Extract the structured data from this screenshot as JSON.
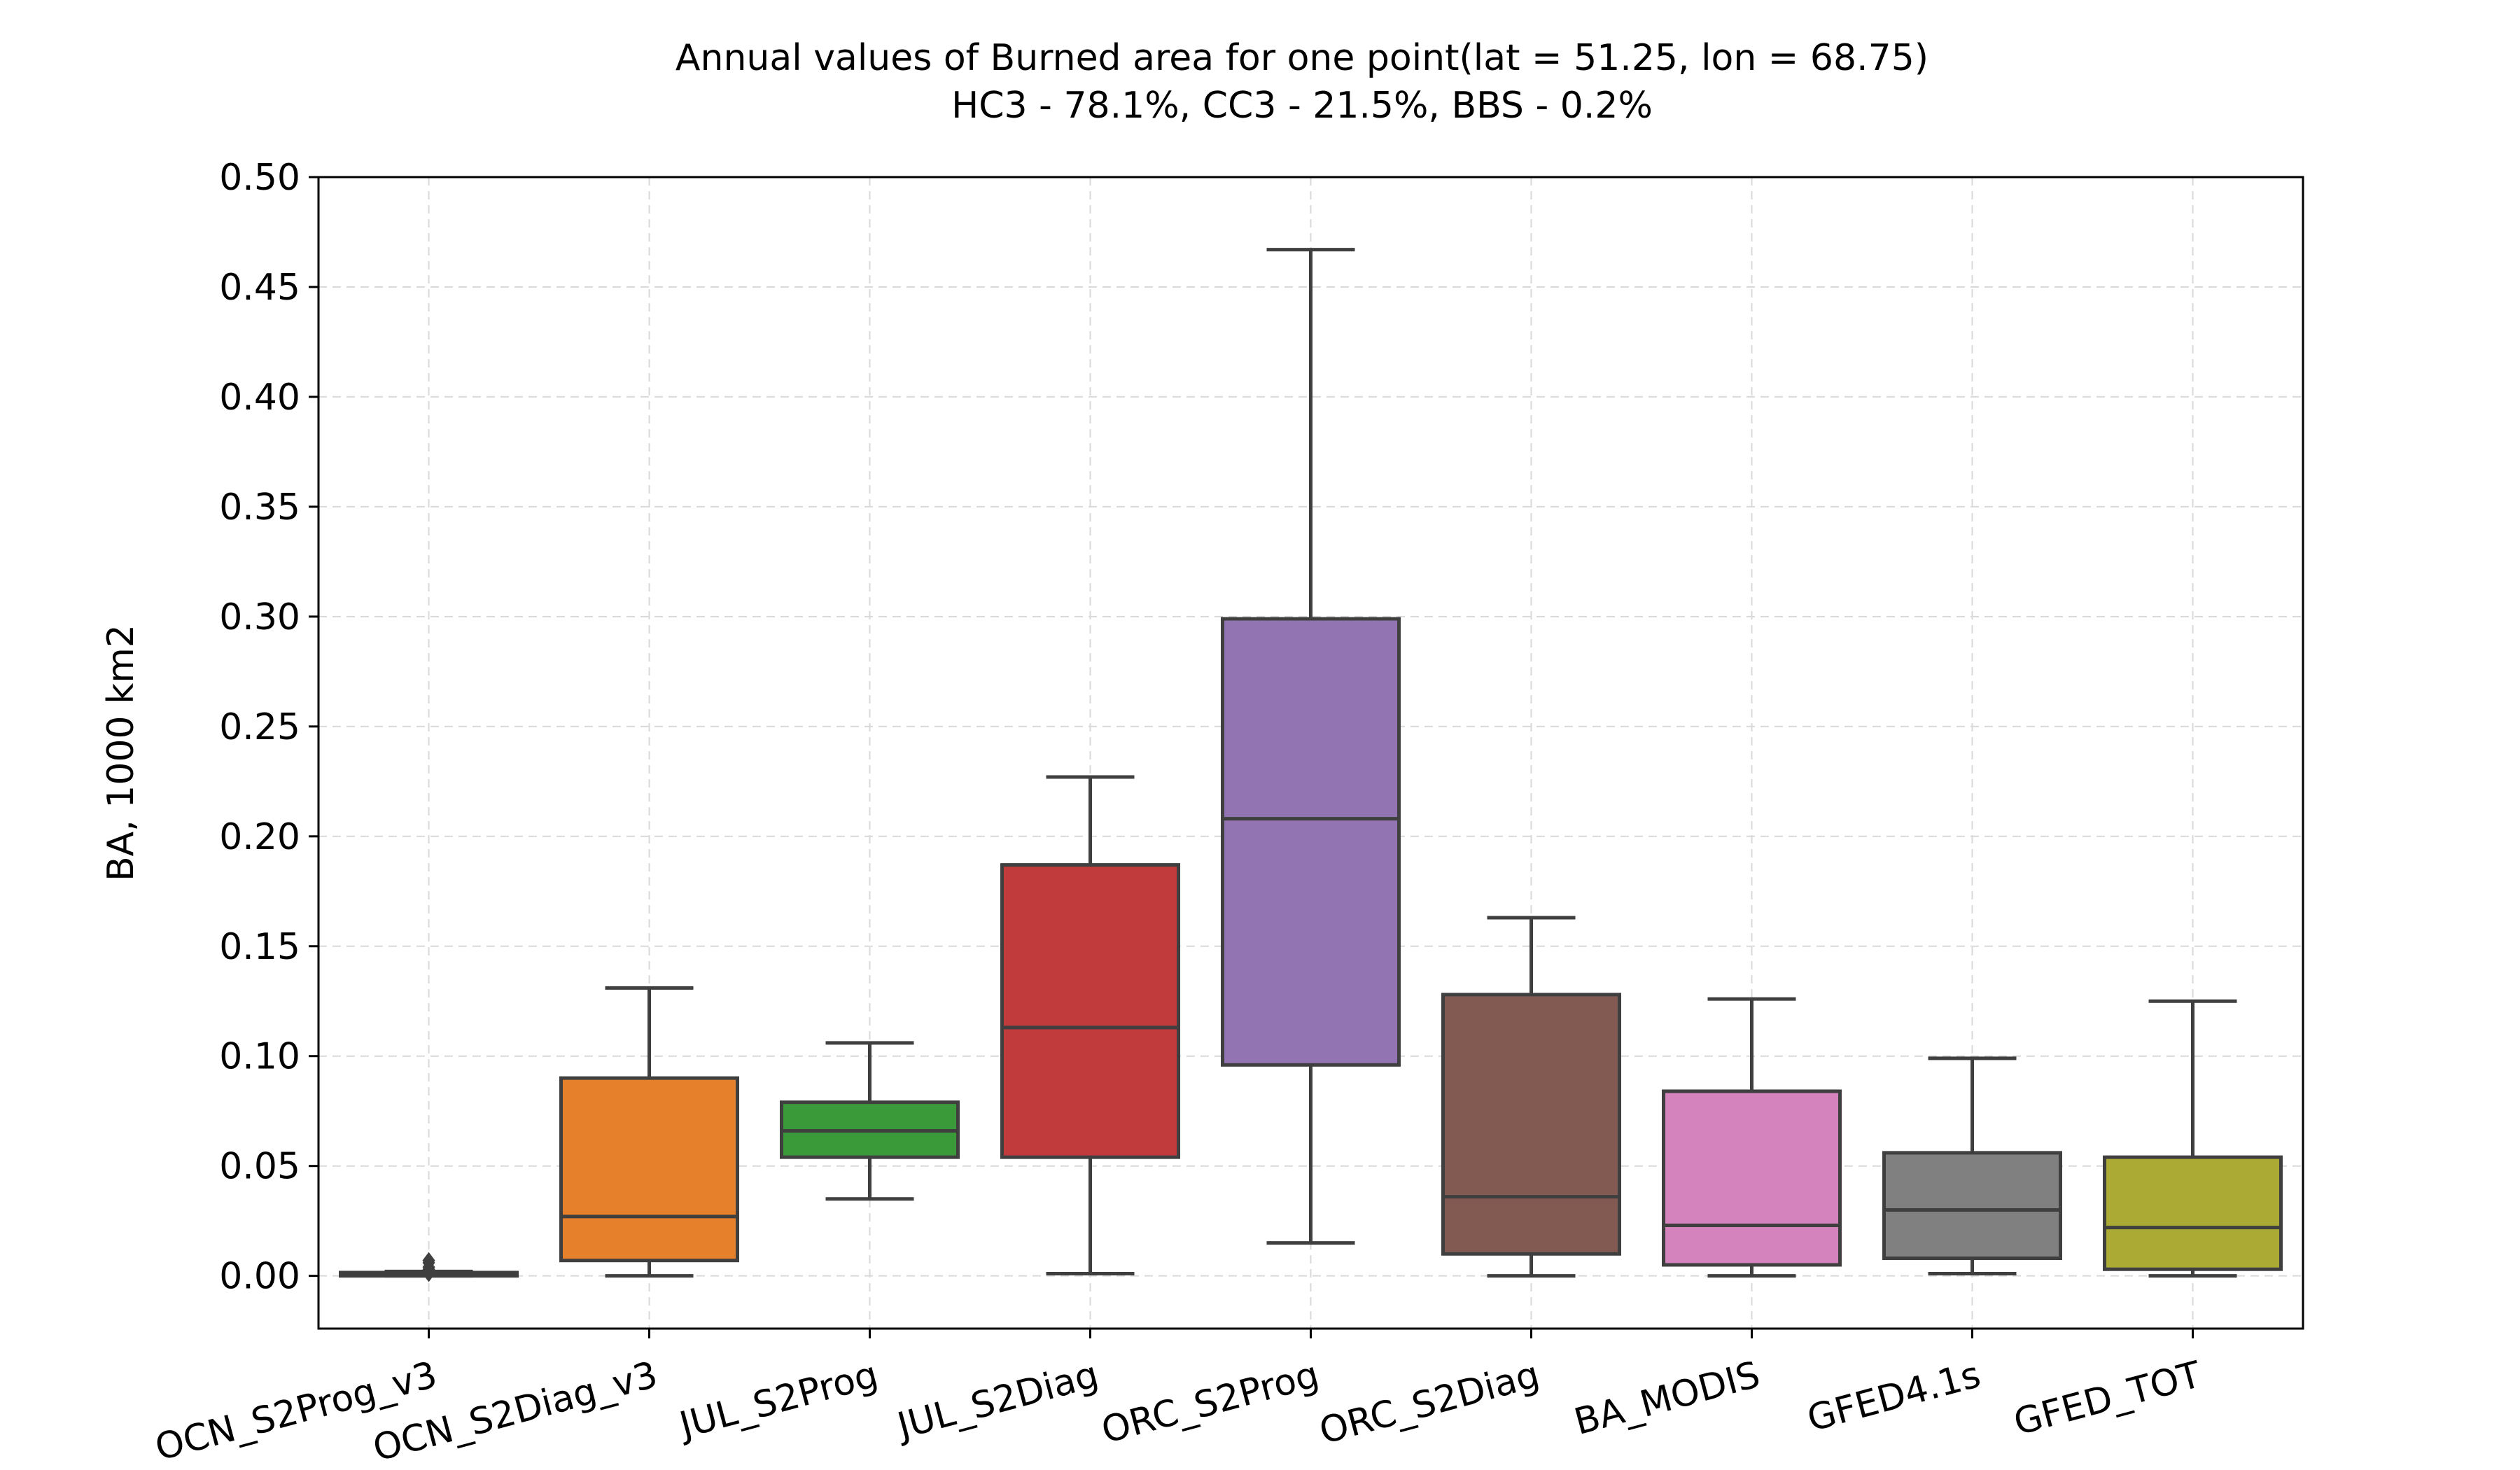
{
  "chart_data": {
    "type": "box",
    "title": "Annual values of Burned area for one point(lat = 51.25, lon = 68.75)",
    "subtitle": "HC3  - 78.1%, CC3  - 21.5%, BBS  -  0.2%",
    "xlabel": "",
    "ylabel": "BA, 1000 km2",
    "ylim": [
      -0.024,
      0.5
    ],
    "yticks": [
      "0.00",
      "0.05",
      "0.10",
      "0.15",
      "0.20",
      "0.25",
      "0.30",
      "0.35",
      "0.40",
      "0.45",
      "0.50"
    ],
    "grid": true,
    "categories": [
      "OCN_S2Prog_v3",
      "OCN_S2Diag_v3",
      "JUL_S2Prog",
      "JUL_S2Diag",
      "ORC_S2Prog",
      "ORC_S2Diag",
      "BA_MODIS",
      "GFED4.1s",
      "GFED_TOT"
    ],
    "boxes": [
      {
        "category": "OCN_S2Prog_v3",
        "min": 0.0,
        "q1": 0.0,
        "median": 0.0005,
        "q3": 0.0015,
        "max": 0.002,
        "outliers": [
          0.001,
          0.003,
          0.004,
          0.006,
          0.007
        ],
        "color": "#1f77b4"
      },
      {
        "category": "OCN_S2Diag_v3",
        "min": 0.0,
        "q1": 0.007,
        "median": 0.027,
        "q3": 0.09,
        "max": 0.131,
        "outliers": [],
        "color": "#e6802a"
      },
      {
        "category": "JUL_S2Prog",
        "min": 0.035,
        "q1": 0.054,
        "median": 0.066,
        "q3": 0.079,
        "max": 0.106,
        "outliers": [],
        "color": "#3a9a3a"
      },
      {
        "category": "JUL_S2Diag",
        "min": 0.001,
        "q1": 0.054,
        "median": 0.113,
        "q3": 0.187,
        "max": 0.227,
        "outliers": [],
        "color": "#c23b3c"
      },
      {
        "category": "ORC_S2Prog",
        "min": 0.015,
        "q1": 0.096,
        "median": 0.208,
        "q3": 0.299,
        "max": 0.467,
        "outliers": [],
        "color": "#9374b2"
      },
      {
        "category": "ORC_S2Diag",
        "min": 0.0,
        "q1": 0.01,
        "median": 0.036,
        "q3": 0.128,
        "max": 0.163,
        "outliers": [],
        "color": "#835a52"
      },
      {
        "category": "BA_MODIS",
        "min": 0.0,
        "q1": 0.005,
        "median": 0.023,
        "q3": 0.084,
        "max": 0.126,
        "outliers": [],
        "color": "#d583bd"
      },
      {
        "category": "GFED4.1s",
        "min": 0.001,
        "q1": 0.008,
        "median": 0.03,
        "q3": 0.056,
        "max": 0.099,
        "outliers": [],
        "color": "#808080"
      },
      {
        "category": "GFED_TOT",
        "min": 0.0,
        "q1": 0.003,
        "median": 0.022,
        "q3": 0.054,
        "max": 0.125,
        "outliers": [],
        "color": "#aaaa35"
      }
    ],
    "line_color": "#3f3f3f",
    "x_tick_rotation": 15
  }
}
